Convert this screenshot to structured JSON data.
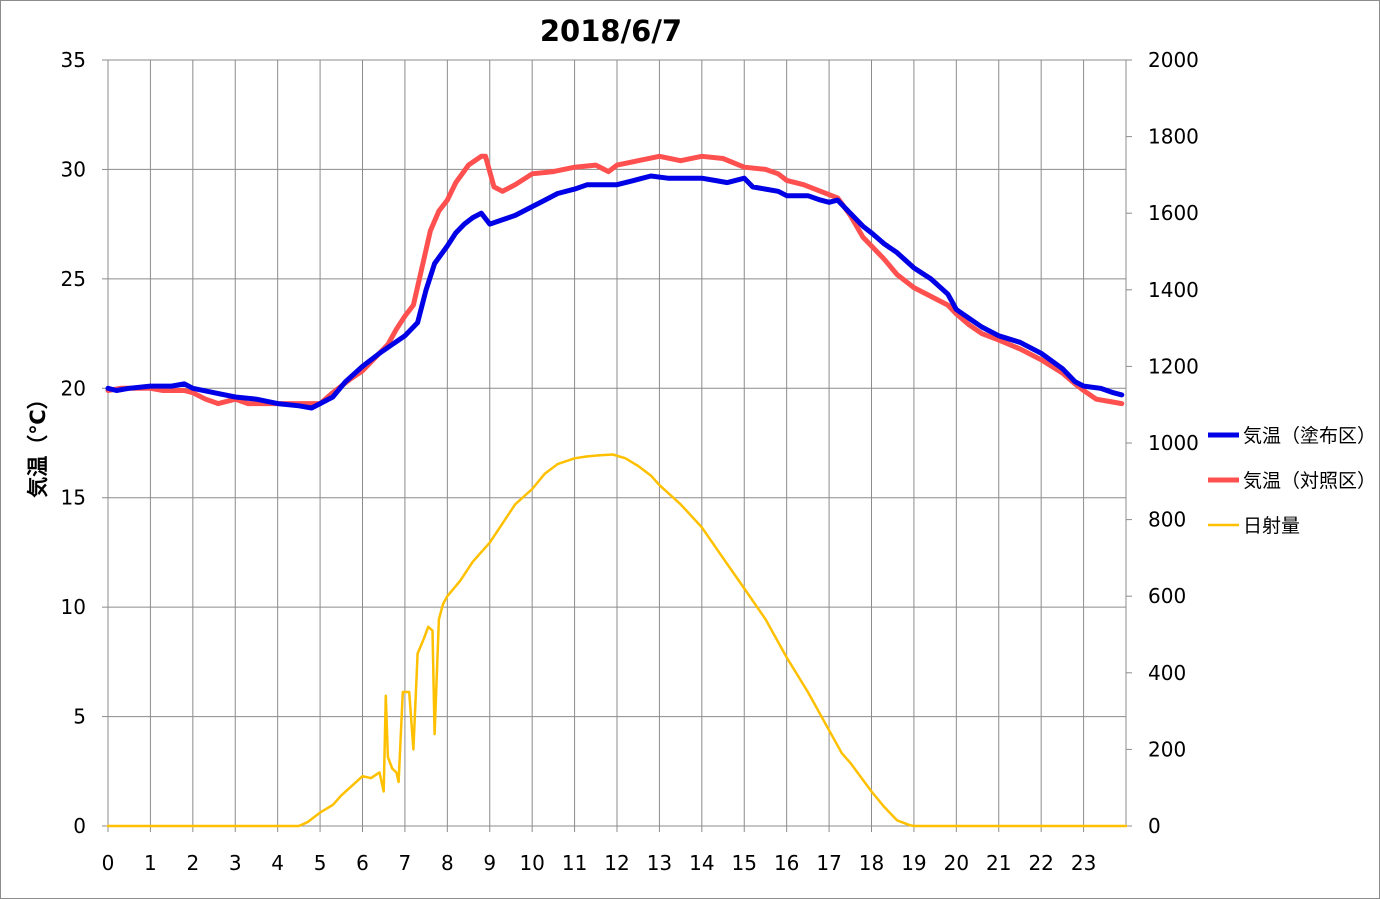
{
  "chart_data": {
    "type": "line",
    "title": "2018/6/7",
    "xlabel": "",
    "ylabel": "気温（℃）",
    "y2label": "",
    "xlim": [
      0,
      24
    ],
    "ylim": [
      0,
      35
    ],
    "y2lim": [
      0,
      2000
    ],
    "x_ticks": [
      "0",
      "1",
      "2",
      "3",
      "4",
      "5",
      "6",
      "7",
      "8",
      "9",
      "10",
      "11",
      "12",
      "13",
      "14",
      "15",
      "16",
      "17",
      "18",
      "19",
      "20",
      "21",
      "22",
      "23"
    ],
    "y_ticks": [
      "0",
      "5",
      "10",
      "15",
      "20",
      "25",
      "30",
      "35"
    ],
    "y2_ticks": [
      "0",
      "200",
      "400",
      "600",
      "800",
      "1000",
      "1200",
      "1400",
      "1600",
      "1800",
      "2000"
    ],
    "grid": true,
    "legend_position": "right",
    "series": [
      {
        "name": "気温（塗布区）",
        "axis": "left",
        "color": "#0000e6",
        "points": [
          [
            0,
            20.0
          ],
          [
            0.2,
            19.9
          ],
          [
            0.5,
            20.0
          ],
          [
            1,
            20.1
          ],
          [
            1.5,
            20.1
          ],
          [
            1.8,
            20.2
          ],
          [
            2,
            20.0
          ],
          [
            2.5,
            19.8
          ],
          [
            3,
            19.6
          ],
          [
            3.5,
            19.5
          ],
          [
            4,
            19.3
          ],
          [
            4.5,
            19.2
          ],
          [
            4.8,
            19.1
          ],
          [
            5,
            19.3
          ],
          [
            5.3,
            19.6
          ],
          [
            5.6,
            20.3
          ],
          [
            6,
            21.0
          ],
          [
            6.4,
            21.6
          ],
          [
            6.7,
            22.0
          ],
          [
            7,
            22.4
          ],
          [
            7.3,
            23.0
          ],
          [
            7.5,
            24.5
          ],
          [
            7.7,
            25.7
          ],
          [
            8,
            26.5
          ],
          [
            8.2,
            27.1
          ],
          [
            8.4,
            27.5
          ],
          [
            8.6,
            27.8
          ],
          [
            8.8,
            28.0
          ],
          [
            9,
            27.5
          ],
          [
            9.3,
            27.7
          ],
          [
            9.6,
            27.9
          ],
          [
            10,
            28.3
          ],
          [
            10.3,
            28.6
          ],
          [
            10.6,
            28.9
          ],
          [
            11,
            29.1
          ],
          [
            11.3,
            29.3
          ],
          [
            11.6,
            29.3
          ],
          [
            12,
            29.3
          ],
          [
            12.4,
            29.5
          ],
          [
            12.8,
            29.7
          ],
          [
            13.2,
            29.6
          ],
          [
            13.6,
            29.6
          ],
          [
            14,
            29.6
          ],
          [
            14.3,
            29.5
          ],
          [
            14.6,
            29.4
          ],
          [
            15,
            29.6
          ],
          [
            15.2,
            29.2
          ],
          [
            15.5,
            29.1
          ],
          [
            15.8,
            29.0
          ],
          [
            16,
            28.8
          ],
          [
            16.5,
            28.8
          ],
          [
            16.8,
            28.6
          ],
          [
            17,
            28.5
          ],
          [
            17.2,
            28.6
          ],
          [
            17.5,
            28.0
          ],
          [
            17.8,
            27.4
          ],
          [
            18,
            27.1
          ],
          [
            18.3,
            26.6
          ],
          [
            18.6,
            26.2
          ],
          [
            19,
            25.5
          ],
          [
            19.4,
            25.0
          ],
          [
            19.8,
            24.3
          ],
          [
            20,
            23.6
          ],
          [
            20.3,
            23.2
          ],
          [
            20.6,
            22.8
          ],
          [
            21,
            22.4
          ],
          [
            21.5,
            22.1
          ],
          [
            22,
            21.6
          ],
          [
            22.5,
            20.9
          ],
          [
            22.8,
            20.3
          ],
          [
            23,
            20.1
          ],
          [
            23.4,
            20.0
          ],
          [
            23.7,
            19.8
          ],
          [
            23.9,
            19.7
          ]
        ]
      },
      {
        "name": "気温（対照区）",
        "axis": "left",
        "color": "#ff5050",
        "points": [
          [
            0,
            19.9
          ],
          [
            0.3,
            20.0
          ],
          [
            0.7,
            20.0
          ],
          [
            1,
            20.0
          ],
          [
            1.3,
            19.9
          ],
          [
            1.8,
            19.9
          ],
          [
            2,
            19.8
          ],
          [
            2.3,
            19.5
          ],
          [
            2.6,
            19.3
          ],
          [
            3,
            19.5
          ],
          [
            3.3,
            19.3
          ],
          [
            3.7,
            19.3
          ],
          [
            4,
            19.3
          ],
          [
            4.5,
            19.3
          ],
          [
            5,
            19.3
          ],
          [
            5.3,
            19.8
          ],
          [
            5.7,
            20.4
          ],
          [
            6,
            20.8
          ],
          [
            6.3,
            21.4
          ],
          [
            6.6,
            22.0
          ],
          [
            6.8,
            22.7
          ],
          [
            7,
            23.3
          ],
          [
            7.2,
            23.8
          ],
          [
            7.4,
            25.5
          ],
          [
            7.6,
            27.2
          ],
          [
            7.8,
            28.1
          ],
          [
            8,
            28.6
          ],
          [
            8.2,
            29.4
          ],
          [
            8.5,
            30.2
          ],
          [
            8.8,
            30.6
          ],
          [
            8.9,
            30.6
          ],
          [
            9.1,
            29.2
          ],
          [
            9.3,
            29.0
          ],
          [
            9.6,
            29.3
          ],
          [
            10,
            29.8
          ],
          [
            10.5,
            29.9
          ],
          [
            11,
            30.1
          ],
          [
            11.5,
            30.2
          ],
          [
            11.8,
            29.9
          ],
          [
            12,
            30.2
          ],
          [
            12.5,
            30.4
          ],
          [
            13,
            30.6
          ],
          [
            13.5,
            30.4
          ],
          [
            14,
            30.6
          ],
          [
            14.5,
            30.5
          ],
          [
            15,
            30.1
          ],
          [
            15.5,
            30.0
          ],
          [
            15.8,
            29.8
          ],
          [
            16,
            29.5
          ],
          [
            16.4,
            29.3
          ],
          [
            16.8,
            29.0
          ],
          [
            17.2,
            28.7
          ],
          [
            17.5,
            27.9
          ],
          [
            17.8,
            26.9
          ],
          [
            18,
            26.5
          ],
          [
            18.3,
            25.9
          ],
          [
            18.6,
            25.2
          ],
          [
            19,
            24.6
          ],
          [
            19.4,
            24.2
          ],
          [
            19.8,
            23.8
          ],
          [
            20,
            23.4
          ],
          [
            20.3,
            22.9
          ],
          [
            20.6,
            22.5
          ],
          [
            21,
            22.2
          ],
          [
            21.5,
            21.8
          ],
          [
            22,
            21.3
          ],
          [
            22.5,
            20.7
          ],
          [
            22.8,
            20.2
          ],
          [
            23,
            19.9
          ],
          [
            23.3,
            19.5
          ],
          [
            23.6,
            19.4
          ],
          [
            23.9,
            19.3
          ]
        ]
      },
      {
        "name": "日射量",
        "axis": "right",
        "color": "#ffc000",
        "points": [
          [
            0,
            0
          ],
          [
            4.5,
            0
          ],
          [
            4.7,
            10
          ],
          [
            5,
            35
          ],
          [
            5.3,
            55
          ],
          [
            5.5,
            80
          ],
          [
            5.8,
            110
          ],
          [
            6,
            130
          ],
          [
            6.2,
            125
          ],
          [
            6.4,
            140
          ],
          [
            6.5,
            90
          ],
          [
            6.55,
            340
          ],
          [
            6.6,
            180
          ],
          [
            6.7,
            150
          ],
          [
            6.8,
            140
          ],
          [
            6.85,
            115
          ],
          [
            6.95,
            350
          ],
          [
            7.1,
            350
          ],
          [
            7.2,
            200
          ],
          [
            7.3,
            450
          ],
          [
            7.45,
            490
          ],
          [
            7.55,
            520
          ],
          [
            7.65,
            510
          ],
          [
            7.7,
            240
          ],
          [
            7.8,
            540
          ],
          [
            7.9,
            580
          ],
          [
            8,
            600
          ],
          [
            8.3,
            640
          ],
          [
            8.6,
            690
          ],
          [
            9,
            740
          ],
          [
            9.3,
            790
          ],
          [
            9.6,
            840
          ],
          [
            10,
            880
          ],
          [
            10.3,
            920
          ],
          [
            10.6,
            945
          ],
          [
            11,
            960
          ],
          [
            11.3,
            965
          ],
          [
            11.6,
            968
          ],
          [
            11.9,
            970
          ],
          [
            12.2,
            960
          ],
          [
            12.5,
            940
          ],
          [
            12.8,
            915
          ],
          [
            13,
            890
          ],
          [
            13.5,
            840
          ],
          [
            14,
            780
          ],
          [
            14.5,
            700
          ],
          [
            15,
            620
          ],
          [
            15.5,
            540
          ],
          [
            16,
            440
          ],
          [
            16.5,
            350
          ],
          [
            17,
            250
          ],
          [
            17.3,
            190
          ],
          [
            17.5,
            165
          ],
          [
            17.8,
            120
          ],
          [
            18,
            90
          ],
          [
            18.3,
            50
          ],
          [
            18.6,
            15
          ],
          [
            18.9,
            2
          ],
          [
            19,
            0
          ],
          [
            24,
            0
          ]
        ]
      }
    ]
  }
}
